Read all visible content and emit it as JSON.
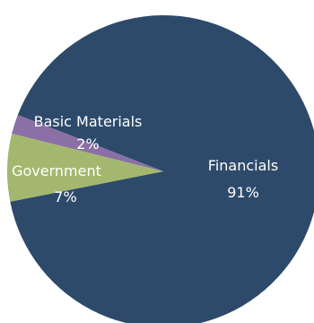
{
  "chart_data": {
    "type": "pie",
    "title": "",
    "slices": [
      {
        "label": "Financials",
        "value": 91,
        "display": "91%",
        "color": "#2e4a6b",
        "text_color": "#ffffff"
      },
      {
        "label": "Government",
        "value": 7,
        "display": "7%",
        "color": "#a3b86e",
        "text_color": "#ffffff"
      },
      {
        "label": "Basic Materials",
        "value": 2,
        "display": "2%",
        "color": "#8a70a5",
        "text_color": "#ffffff"
      }
    ],
    "legend": "none"
  }
}
